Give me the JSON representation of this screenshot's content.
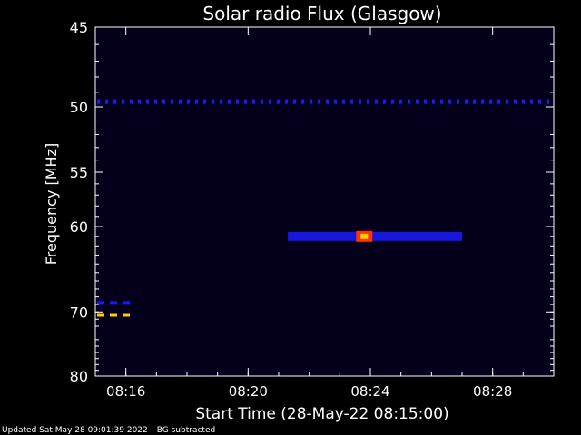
{
  "chart_data": {
    "type": "heatmap",
    "title": "Solar radio Flux (Glasgow)",
    "xlabel": "Start Time (28-May-22 08:15:00)",
    "ylabel": "Frequency [MHz]",
    "x_ticks": [
      "08:16",
      "08:20",
      "08:24",
      "08:28"
    ],
    "x_tick_minutes": [
      16,
      20,
      24,
      28
    ],
    "x_range_minutes": [
      15.0,
      30.0
    ],
    "y_ticks": [
      45,
      50,
      55,
      60,
      70,
      80
    ],
    "y_range_mhz": [
      45,
      80
    ],
    "y_scale": "reciprocal",
    "grid": false,
    "features": [
      {
        "name": "constant emission line",
        "freq_mhz": 49.6,
        "minutes": [
          15.0,
          30.0
        ],
        "intensity": "low"
      },
      {
        "name": "weak lines",
        "freq_mhz": 68.8,
        "minutes": [
          15.0,
          16.2
        ],
        "intensity": "low"
      },
      {
        "name": "weak lines",
        "freq_mhz": 70.4,
        "minutes": [
          15.0,
          16.2
        ],
        "intensity": "high"
      },
      {
        "name": "burst",
        "freq_mhz": 61.0,
        "minutes": [
          21.3,
          27.0
        ],
        "peak_minute": 23.8,
        "intensity": "high"
      }
    ]
  },
  "footer": {
    "updated": "Updated Sat May 28 09:01:39 2022",
    "bg": "BG subtracted"
  },
  "colors": {
    "background": "#000000",
    "plot_bg": "#04001c",
    "axis": "#ffffff",
    "low": "#1a1aff",
    "mid": "#ff3300",
    "high": "#ffcc00"
  }
}
